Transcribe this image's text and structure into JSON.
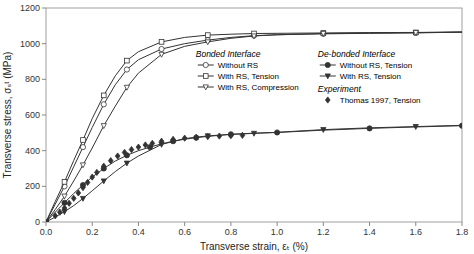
{
  "chart_data": {
    "type": "line",
    "title": "",
    "xlabel": "Transverse strain, εₜ (%)",
    "ylabel": "Transverse stress, σₛᵗ (MPa)",
    "xlim": [
      0.0,
      1.8
    ],
    "ylim": [
      0,
      1200
    ],
    "xticks": [
      {
        "value": 0.0,
        "label": "0.0"
      },
      0.2,
      0.4,
      0.6,
      0.8,
      {
        "value": 1.0,
        "label": "1.0"
      },
      1.2,
      1.4,
      1.6,
      1.8
    ],
    "yticks": [
      0,
      200,
      400,
      600,
      800,
      1000,
      1200
    ],
    "grid": false,
    "color": "#333333",
    "series": [
      {
        "name": "Without RS",
        "group": "Bonded Interface",
        "marker": "open-circle",
        "x": [
          0.0,
          0.04,
          0.08,
          0.12,
          0.16,
          0.2,
          0.25,
          0.3,
          0.35,
          0.4,
          0.5,
          0.6,
          0.7,
          0.8,
          0.9,
          1.0,
          1.2,
          1.4,
          1.6,
          1.8
        ],
        "values": [
          0,
          100,
          200,
          310,
          420,
          530,
          660,
          770,
          855,
          910,
          970,
          1000,
          1020,
          1035,
          1045,
          1050,
          1055,
          1058,
          1060,
          1065
        ]
      },
      {
        "name": "With RS, Tension",
        "group": "Bonded Interface",
        "marker": "open-square",
        "x": [
          0.0,
          0.04,
          0.08,
          0.12,
          0.16,
          0.2,
          0.25,
          0.3,
          0.35,
          0.4,
          0.5,
          0.6,
          0.7,
          0.8,
          0.9,
          1.0,
          1.2,
          1.4,
          1.6,
          1.8
        ],
        "values": [
          0,
          115,
          225,
          345,
          460,
          580,
          710,
          820,
          905,
          955,
          1010,
          1035,
          1048,
          1053,
          1057,
          1058,
          1060,
          1062,
          1063,
          1065
        ]
      },
      {
        "name": "With RS, Compression",
        "group": "Bonded Interface",
        "marker": "open-triangle-down",
        "x": [
          0.0,
          0.04,
          0.08,
          0.12,
          0.16,
          0.2,
          0.25,
          0.3,
          0.35,
          0.4,
          0.5,
          0.6,
          0.7,
          0.8,
          0.9,
          1.0,
          1.2,
          1.4,
          1.6,
          1.8
        ],
        "values": [
          0,
          70,
          145,
          230,
          320,
          415,
          540,
          650,
          755,
          835,
          940,
          985,
          1010,
          1030,
          1043,
          1050,
          1057,
          1060,
          1062,
          1065
        ]
      },
      {
        "name": "Without RS, Tension",
        "group": "De-bonded Interface",
        "marker": "circle",
        "x": [
          0.0,
          0.04,
          0.08,
          0.12,
          0.16,
          0.2,
          0.25,
          0.3,
          0.35,
          0.4,
          0.45,
          0.5,
          0.55,
          0.6,
          0.65,
          0.7,
          0.8,
          0.9,
          1.0,
          1.2,
          1.4,
          1.6,
          1.8
        ],
        "values": [
          0,
          55,
          108,
          160,
          207,
          252,
          300,
          342,
          374,
          400,
          420,
          438,
          453,
          464,
          473,
          480,
          492,
          498,
          502,
          515,
          525,
          533,
          540
        ]
      },
      {
        "name": "With RS, Tension",
        "group": "De-bonded Interface",
        "marker": "triangle-down",
        "x": [
          0.0,
          0.04,
          0.08,
          0.12,
          0.16,
          0.2,
          0.25,
          0.3,
          0.35,
          0.4,
          0.5,
          0.6,
          0.7,
          0.8,
          0.9,
          1.0,
          1.2,
          1.4,
          1.6,
          1.8
        ],
        "values": [
          0,
          28,
          58,
          92,
          132,
          175,
          230,
          283,
          330,
          370,
          435,
          468,
          483,
          491,
          497,
          503,
          518,
          528,
          535,
          542
        ]
      },
      {
        "name": "Thomas 1997, Tension",
        "group": "Experiment",
        "marker": "diamond",
        "type": "scatter",
        "x": [
          0.04,
          0.06,
          0.08,
          0.1,
          0.12,
          0.14,
          0.16,
          0.18,
          0.2,
          0.22,
          0.25,
          0.28,
          0.31,
          0.34,
          0.37,
          0.4,
          0.43,
          0.46,
          0.5,
          0.55,
          0.6,
          0.65,
          0.7,
          0.75,
          0.8,
          0.85
        ],
        "values": [
          35,
          55,
          78,
          105,
          133,
          163,
          193,
          222,
          252,
          278,
          313,
          344,
          370,
          390,
          406,
          420,
          432,
          441,
          453,
          463,
          470,
          475,
          479,
          482,
          484,
          486
        ]
      }
    ]
  }
}
